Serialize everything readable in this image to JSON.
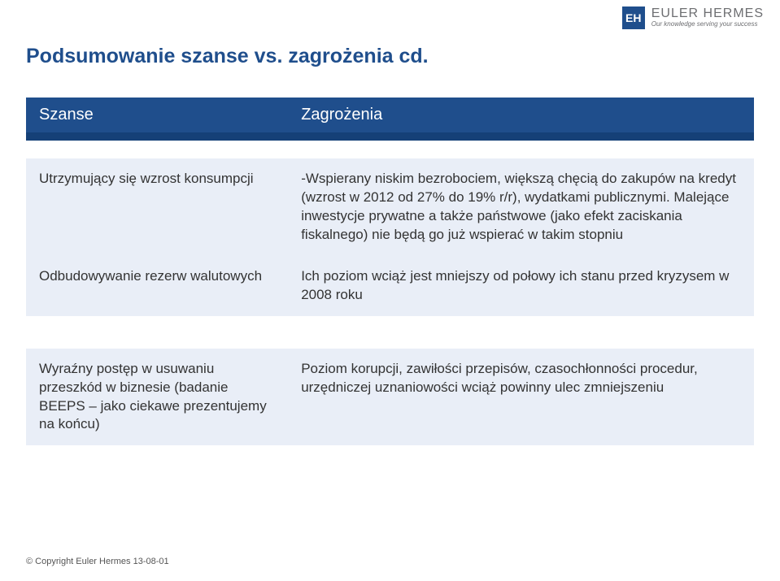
{
  "brand": {
    "badge_text": "EH",
    "name": "EULER HERMES",
    "tagline": "Our knowledge serving your success",
    "badge_bg": "#1f4e8c",
    "badge_fg": "#ffffff",
    "name_color": "#6d6e71",
    "tagline_color": "#6d6e71"
  },
  "title": {
    "text": "Podsumowanie szanse vs. zagrożenia cd.",
    "color": "#1f4e8c"
  },
  "table": {
    "header_bg": "#1f4e8c",
    "header_divider_bg": "#154077",
    "row_bg": "#e9eef7",
    "text_color": "#333333",
    "columns": [
      "Szanse",
      "Zagrożenia"
    ],
    "groups": [
      {
        "rows": [
          {
            "left": "Utrzymujący się wzrost konsumpcji",
            "right": "-Wspierany niskim bezrobociem, większą chęcią do zakupów na kredyt (wzrost w 2012 od 27% do 19% r/r), wydatkami publicznymi. Malejące inwestycje prywatne a także państwowe (jako efekt zaciskania fiskalnego) nie będą go już wspierać w takim stopniu"
          },
          {
            "left": "Odbudowywanie rezerw walutowych",
            "right": "Ich poziom wciąż jest mniejszy od połowy ich stanu przed kryzysem w 2008 roku"
          }
        ]
      },
      {
        "rows": [
          {
            "left": "Wyraźny postęp w usuwaniu przeszkód w biznesie (badanie BEEPS – jako ciekawe prezentujemy na końcu)",
            "right": "Poziom korupcji, zawiłości przepisów, czasochłonności procedur, urzędniczej uznaniowości wciąż powinny ulec zmniejszeniu"
          }
        ]
      }
    ]
  },
  "footer": {
    "text": "© Copyright Euler Hermes 13-08-01",
    "color": "#555555"
  }
}
